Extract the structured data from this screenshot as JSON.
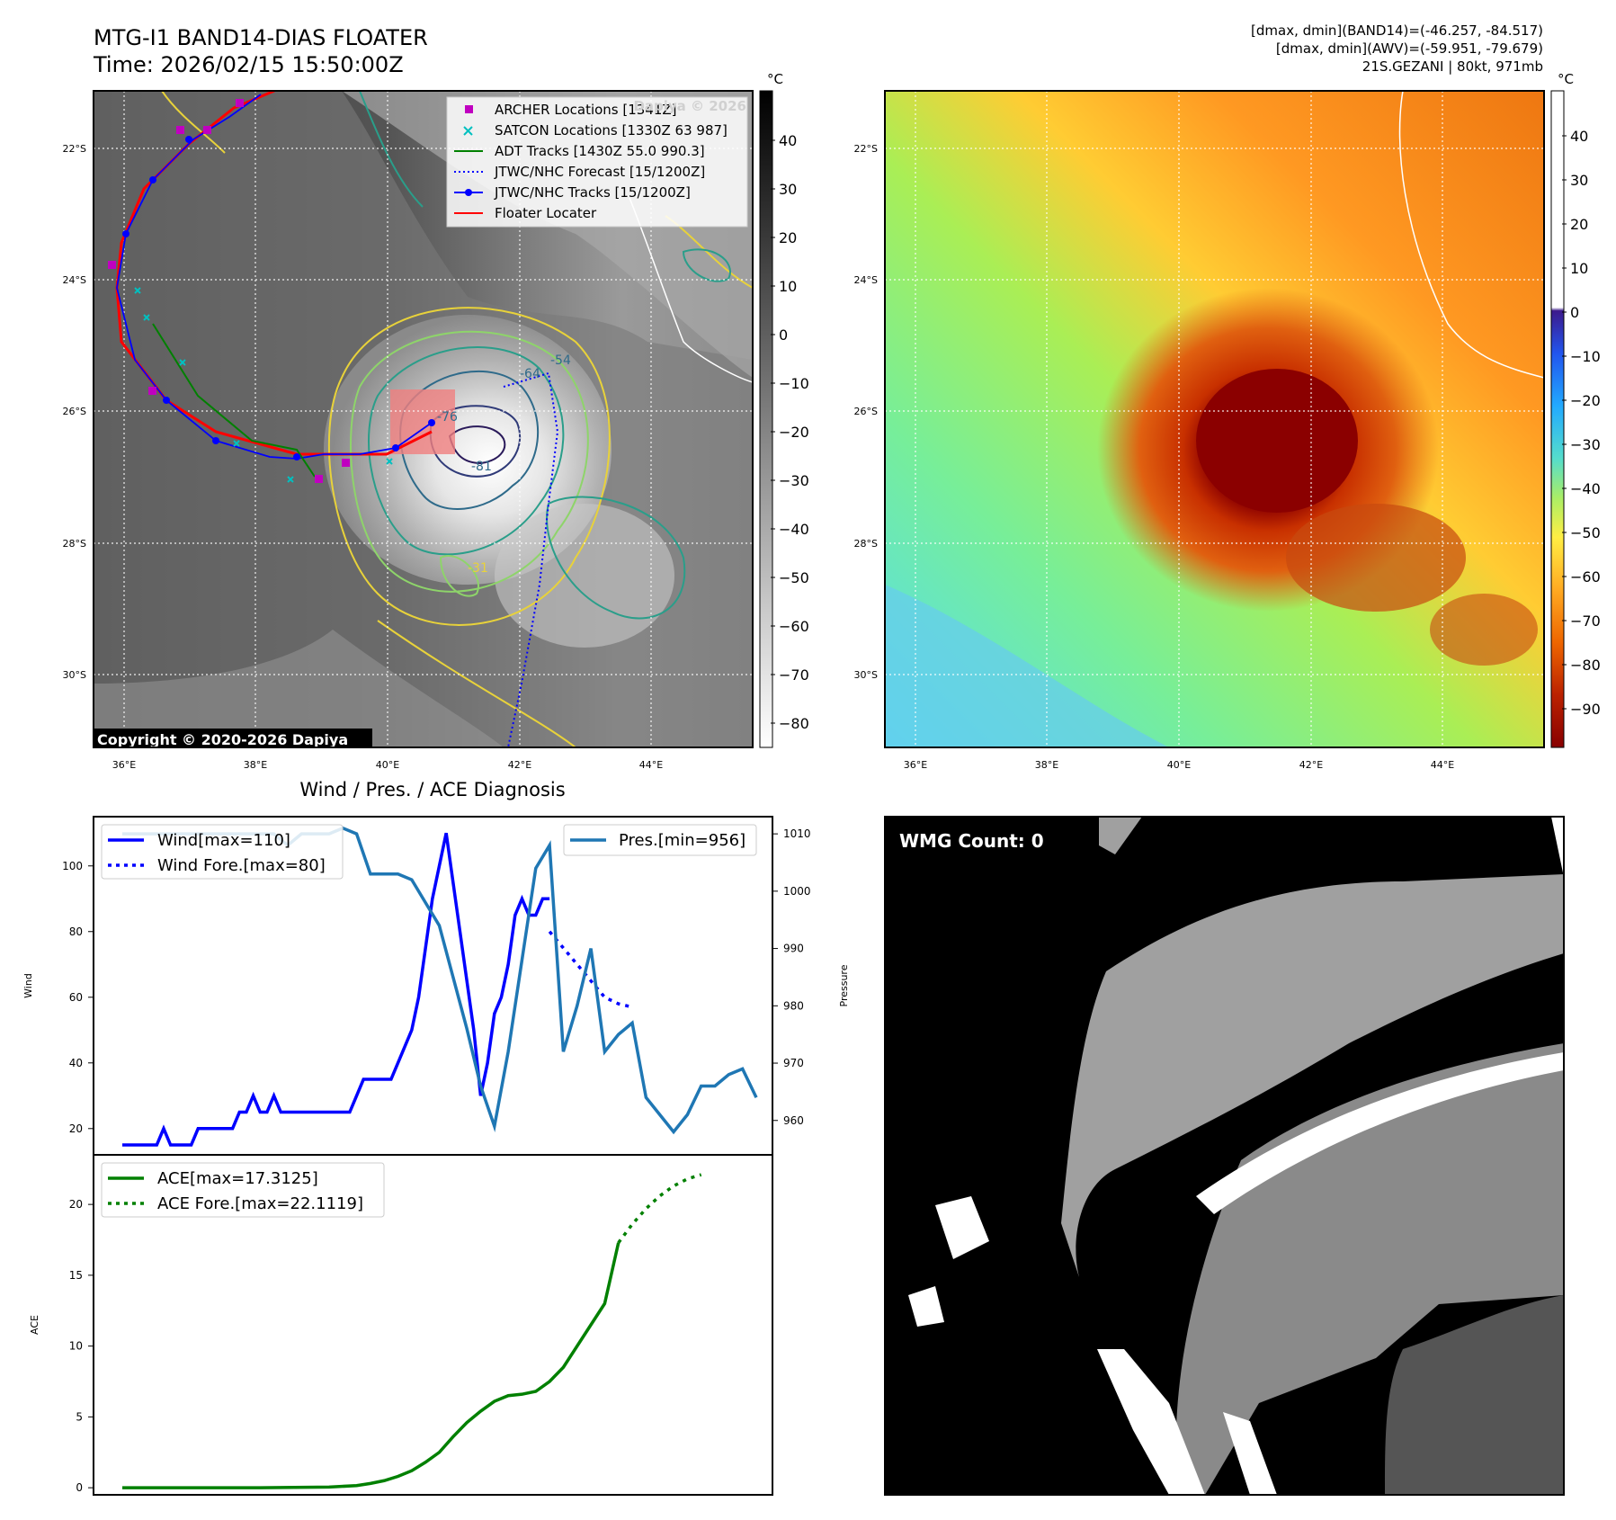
{
  "header": {
    "title_line1": "MTG-I1 BAND14-DIAS FLOATER",
    "title_line2": "Time: 2026/02/15 15:50:00Z",
    "info_line1": "[dmax, dmin](BAND14)=(-46.257, -84.517)",
    "info_line2": "[dmax, dmin](AWV)=(-59.951, -79.679)",
    "info_line3": "21S.GEZANI | 80kt, 971mb"
  },
  "map": {
    "lat_labels": [
      "22°S",
      "24°S",
      "26°S",
      "28°S",
      "30°S"
    ],
    "lon_labels": [
      "36°E",
      "38°E",
      "40°E",
      "42°E",
      "44°E"
    ],
    "copyright": "Copyright © 2020-2026 Dapiya",
    "watermark": "Dapiya © 2026",
    "legend": [
      {
        "label": "ARCHER Locations [1341Z]",
        "color": "#c000c0",
        "symbol": "square"
      },
      {
        "label": "SATCON Locations [1330Z 63 987]",
        "color": "#00c0c0",
        "symbol": "x"
      },
      {
        "label": "ADT Tracks [1430Z 55.0 990.3]",
        "color": "#008000",
        "symbol": "line"
      },
      {
        "label": "JTWC/NHC Forecast [15/1200Z]",
        "color": "#0000ff",
        "symbol": "dotted"
      },
      {
        "label": "JTWC/NHC Tracks [15/1200Z]",
        "color": "#0000ff",
        "symbol": "line-dot"
      },
      {
        "label": "Floater Locater",
        "color": "#ff0000",
        "symbol": "line"
      }
    ],
    "contour_labels": [
      "-31",
      "-54",
      "-64",
      "-76",
      "-81"
    ],
    "colorbar_gray": {
      "unit": "°C",
      "ticks": [
        "40",
        "30",
        "20",
        "10",
        "0",
        "−10",
        "−20",
        "−30",
        "−40",
        "−50",
        "−60",
        "−70",
        "−80"
      ]
    },
    "colorbar_color": {
      "unit": "°C",
      "ticks": [
        "40",
        "30",
        "20",
        "10",
        "0",
        "−10",
        "−20",
        "−30",
        "−40",
        "−50",
        "−60",
        "−70",
        "−80",
        "−90"
      ]
    }
  },
  "diag_title": "Wind / Pres. / ACE Diagnosis",
  "wmg_label": "WMG Count: 0",
  "chart_data": [
    {
      "type": "line",
      "title": "Wind / Pres. / ACE Diagnosis",
      "ylabel": "Wind",
      "ylabel_right": "Pressure",
      "ylim": [
        12,
        115
      ],
      "ylim_right": [
        954,
        1013
      ],
      "yticks": [
        "20",
        "40",
        "60",
        "80",
        "100"
      ],
      "yticks_right": [
        "960",
        "970",
        "980",
        "990",
        "1000",
        "1010"
      ],
      "legend_left": [
        "Wind[max=110]",
        "Wind Fore.[max=80]"
      ],
      "legend_right": [
        "Pres.[min=956]"
      ],
      "series": [
        {
          "name": "Wind",
          "color": "#0000ff",
          "style": "solid",
          "x": [
            0,
            1,
            2,
            3,
            4,
            5,
            6,
            7,
            8,
            9,
            10,
            11,
            12,
            13,
            14,
            15,
            16,
            17,
            18,
            19,
            20,
            21,
            22,
            23,
            24,
            25,
            26,
            27,
            28,
            29,
            30,
            31,
            32,
            33,
            34,
            35,
            36,
            37,
            38,
            39,
            40,
            41,
            42,
            43,
            44,
            45,
            46,
            47,
            48,
            49,
            50,
            51,
            52,
            53,
            54,
            55,
            56,
            57,
            58,
            59,
            60,
            61,
            62
          ],
          "values": [
            15,
            15,
            15,
            15,
            15,
            15,
            20,
            15,
            15,
            15,
            15,
            20,
            20,
            20,
            20,
            20,
            20,
            25,
            25,
            30,
            25,
            25,
            30,
            25,
            25,
            25,
            25,
            25,
            25,
            25,
            25,
            25,
            25,
            25,
            30,
            35,
            35,
            35,
            35,
            35,
            40,
            45,
            50,
            60,
            75,
            90,
            100,
            110,
            95,
            80,
            65,
            50,
            30,
            40,
            55,
            60,
            70,
            85,
            90,
            85,
            85,
            90,
            90
          ]
        },
        {
          "name": "Wind Fore.",
          "color": "#0000ff",
          "style": "dotted",
          "x": [
            62,
            64,
            66,
            68,
            70,
            72,
            74
          ],
          "values": [
            80,
            75,
            70,
            65,
            60,
            58,
            57
          ]
        },
        {
          "name": "Pres.",
          "color": "#1f77b4",
          "style": "solid",
          "axis": "right",
          "x": [
            0,
            2,
            4,
            6,
            8,
            10,
            12,
            14,
            16,
            18,
            20,
            22,
            24,
            26,
            28,
            30,
            32,
            34,
            36,
            38,
            40,
            42,
            44,
            46,
            48,
            50,
            52,
            54,
            56,
            58,
            60,
            62,
            64,
            66,
            68,
            70,
            72,
            74,
            76,
            78,
            80,
            82,
            84,
            86,
            88,
            90,
            92
          ],
          "values": [
            1010,
            1010,
            1010,
            1010,
            1010,
            1010,
            1010,
            1010,
            1010,
            1010,
            1010,
            1010,
            1008,
            1010,
            1010,
            1010,
            1011,
            1010,
            1003,
            1003,
            1003,
            1002,
            998,
            994,
            985,
            976,
            966,
            959,
            972,
            988,
            1004,
            1008,
            972,
            980,
            990,
            972,
            975,
            977,
            964,
            961,
            958,
            961,
            966,
            966,
            968,
            969,
            964
          ]
        }
      ]
    },
    {
      "type": "line",
      "ylabel": "ACE",
      "ylim": [
        -0.5,
        23.5
      ],
      "yticks": [
        "0",
        "5",
        "10",
        "15",
        "20"
      ],
      "legend": [
        "ACE[max=17.3125]",
        "ACE Fore.[max=22.1119]"
      ],
      "series": [
        {
          "name": "ACE",
          "color": "#008000",
          "style": "solid",
          "x": [
            0,
            10,
            20,
            30,
            34,
            36,
            38,
            40,
            42,
            44,
            46,
            48,
            50,
            52,
            54,
            56,
            58,
            60,
            62,
            64,
            66,
            68,
            70,
            72
          ],
          "values": [
            0,
            0,
            0,
            0.05,
            0.15,
            0.3,
            0.5,
            0.8,
            1.2,
            1.8,
            2.5,
            3.6,
            4.6,
            5.4,
            6.1,
            6.5,
            6.6,
            6.8,
            7.5,
            8.5,
            10,
            11.5,
            13,
            17.3
          ]
        },
        {
          "name": "ACE Fore.",
          "color": "#008000",
          "style": "dotted",
          "x": [
            72,
            74,
            76,
            78,
            80,
            82,
            84
          ],
          "values": [
            17.3,
            18.6,
            19.7,
            20.6,
            21.3,
            21.8,
            22.1
          ]
        }
      ]
    }
  ]
}
